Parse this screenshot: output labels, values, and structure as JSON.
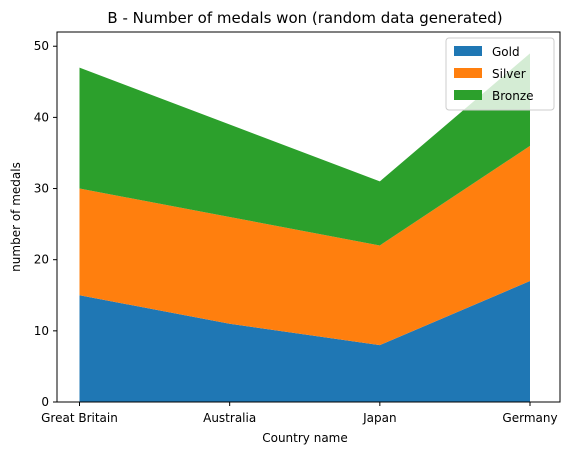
{
  "chart_data": {
    "type": "area",
    "stacked": true,
    "title": "B - Number of medals won (random data generated)",
    "xlabel": "Country name",
    "ylabel": "number of medals",
    "categories": [
      "Great Britain",
      "Australia",
      "Japan",
      "Germany"
    ],
    "ylim": [
      0,
      52
    ],
    "yticks": [
      0,
      10,
      20,
      30,
      40,
      50
    ],
    "grid": false,
    "legend_position": "top-right",
    "series": [
      {
        "name": "Gold",
        "color": "#1f77b4",
        "values": [
          15,
          11,
          8,
          17
        ]
      },
      {
        "name": "Silver",
        "color": "#ff7f0e",
        "values": [
          15,
          15,
          14,
          19
        ]
      },
      {
        "name": "Bronze",
        "color": "#2ca02c",
        "values": [
          17,
          13,
          9,
          13
        ]
      }
    ]
  }
}
